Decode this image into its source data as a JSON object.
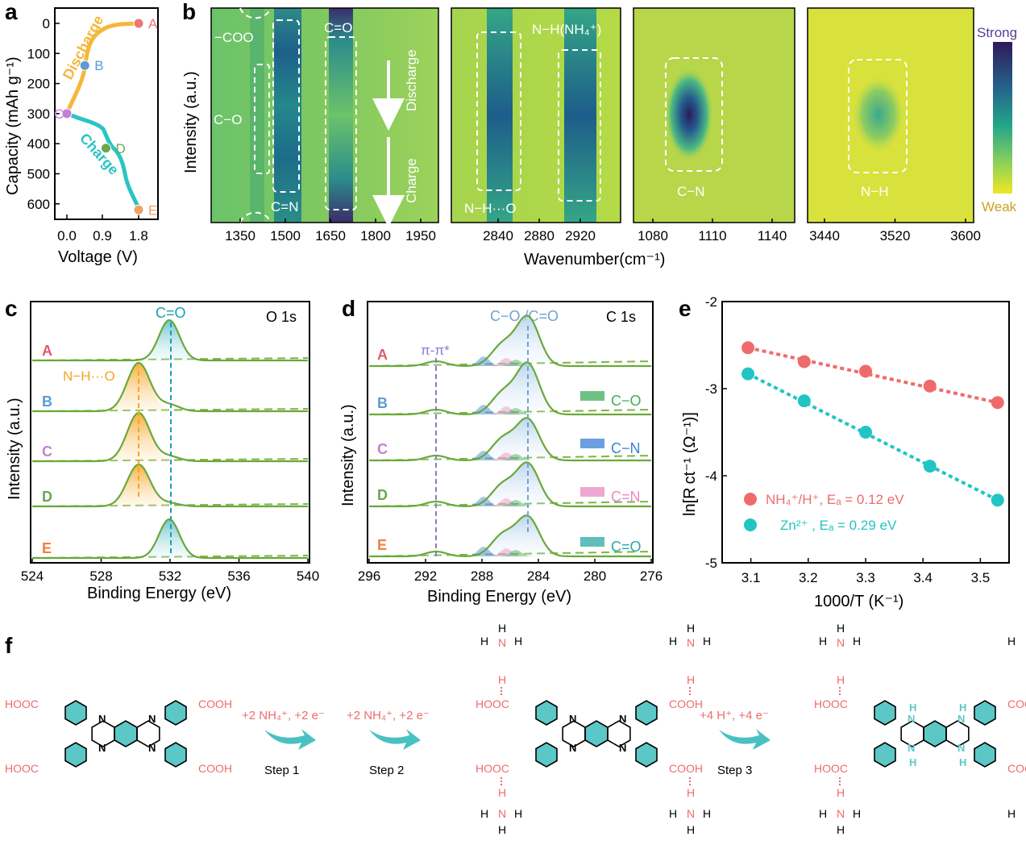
{
  "panel_a": {
    "label": "a",
    "ylabel": "Capacity (mAh g⁻¹)",
    "xlabel": "Voltage (V)",
    "yticks": [
      "0",
      "100",
      "200",
      "300",
      "400",
      "500",
      "600"
    ],
    "xticks": [
      "0.0",
      "0.9",
      "1.8"
    ],
    "points": [
      {
        "name": "A",
        "color": "#f07575",
        "v": 1.8,
        "cap": 0
      },
      {
        "name": "B",
        "color": "#5b9bd5",
        "v": 0.45,
        "cap": 140
      },
      {
        "name": "C",
        "color": "#c47fd6",
        "v": 0.0,
        "cap": 300
      },
      {
        "name": "D",
        "color": "#6aa84f",
        "v": 0.98,
        "cap": 415
      },
      {
        "name": "E",
        "color": "#f0a060",
        "v": 1.8,
        "cap": 620
      }
    ],
    "discharge_label": "Discharge",
    "charge_label": "Charge",
    "discharge_color": "#f5b73b",
    "charge_color": "#2bc4c4"
  },
  "panel_b": {
    "label": "b",
    "ylabel": "Intensity (a.u.)",
    "xlabel": "Wavenumber(cm⁻¹)",
    "sub1": {
      "xticks": [
        "1350",
        "1500",
        "1650",
        "1800",
        "1950"
      ],
      "labels": {
        "coo": "−COO",
        "cn": "C=N",
        "co": "C−O",
        "c_eq_o": "C=O",
        "discharge": "Discharge",
        "charge": "Charge"
      }
    },
    "sub2": {
      "xticks": [
        "2840",
        "2880",
        "2920"
      ],
      "labels": {
        "nhnh4": "N−H(NH₄⁺)",
        "nho": "N−H···O"
      }
    },
    "sub3": {
      "xticks": [
        "1080",
        "1110",
        "1140"
      ],
      "labels": {
        "cn": "C−N"
      }
    },
    "sub4": {
      "xticks": [
        "3440",
        "3520",
        "3600"
      ],
      "labels": {
        "nh": "N−H"
      }
    },
    "colorbar": {
      "strong": "Strong",
      "weak": "Weak",
      "strong_color": "#5a3d9a",
      "weak_color": "#c9a227"
    }
  },
  "panel_c": {
    "label": "c",
    "title": "O 1s",
    "peak_label": "C=O",
    "hb_label": "N−H···O",
    "ylabel": "Intensity (a.u.)",
    "xlabel": "Binding Energy (eV)",
    "xticks": [
      "524",
      "528",
      "532",
      "536",
      "540"
    ],
    "rows": [
      {
        "name": "A",
        "color": "#e05a6a"
      },
      {
        "name": "B",
        "color": "#5b9bd5"
      },
      {
        "name": "C",
        "color": "#c47fd6"
      },
      {
        "name": "D",
        "color": "#6aa84f"
      },
      {
        "name": "E",
        "color": "#f08040"
      }
    ]
  },
  "panel_d": {
    "label": "d",
    "title": "C 1s",
    "peak_label": "C−O /C=O",
    "pi_label": "π-π*",
    "ylabel": "Intensity (a.u.)",
    "xlabel": "Binding Energy (eV)",
    "xticks": [
      "296",
      "292",
      "288",
      "284",
      "280",
      "276"
    ],
    "legend": [
      {
        "name": "C−O",
        "color": "#3fae5a"
      },
      {
        "name": "C−N",
        "color": "#3a7fd6"
      },
      {
        "name": "C=N",
        "color": "#e88ac0"
      },
      {
        "name": "C=O",
        "color": "#2aa8a8"
      }
    ],
    "rows": [
      {
        "name": "A",
        "color": "#e05a6a"
      },
      {
        "name": "B",
        "color": "#5b9bd5"
      },
      {
        "name": "C",
        "color": "#c47fd6"
      },
      {
        "name": "D",
        "color": "#6aa84f"
      },
      {
        "name": "E",
        "color": "#f08040"
      }
    ]
  },
  "panel_e": {
    "label": "e",
    "ylabel": "ln[R ct⁻¹ (Ω⁻¹)]",
    "xlabel": "1000/T (K⁻¹)",
    "xticks": [
      "3.1",
      "3.2",
      "3.3",
      "3.4",
      "3.5"
    ],
    "yticks": [
      "-2",
      "-3",
      "-4",
      "-5"
    ],
    "legend1": "NH₄⁺/H⁺, Eₐ = 0.12 eV",
    "legend2": "Zn²⁺    , Eₐ = 0.29 eV"
  },
  "chart_data": [
    {
      "type": "scatter",
      "xlabel": "1000/T (K⁻¹)",
      "ylabel": "ln[Rct⁻¹ (Ω⁻¹)]",
      "xlim": [
        3.05,
        3.55
      ],
      "ylim": [
        -5,
        -2
      ],
      "series": [
        {
          "name": "NH₄⁺/H⁺, Eₐ = 0.12 eV",
          "color": "#ef6b6b",
          "x": [
            3.095,
            3.193,
            3.3,
            3.412,
            3.53
          ],
          "y": [
            -2.53,
            -2.69,
            -2.8,
            -2.97,
            -3.16
          ]
        },
        {
          "name": "Zn²⁺, Eₐ = 0.29 eV",
          "color": "#22c4c4",
          "x": [
            3.095,
            3.193,
            3.3,
            3.412,
            3.53
          ],
          "y": [
            -2.83,
            -3.14,
            -3.5,
            -3.89,
            -4.28
          ]
        }
      ]
    }
  ],
  "panel_f": {
    "label": "f",
    "step1": "Step 1",
    "step2": "Step 2",
    "step3": "Step 3",
    "reag1": "+2 NH₄⁺, +2 e⁻",
    "reag2": "+2 NH₄⁺, +2 e⁻",
    "reag3": "+4 H⁺, +4 e⁻",
    "hooc": "HOOC",
    "cooh": "COOH",
    "n": "N",
    "h": "H"
  }
}
